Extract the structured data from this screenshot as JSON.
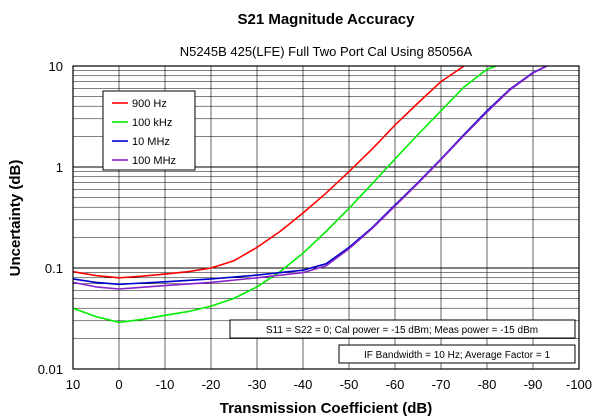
{
  "chart_data": {
    "type": "line",
    "title": "S21 Magnitude Accuracy",
    "subtitle": "N5245B 425(LFE) Full Two Port Cal Using 85056A",
    "xlabel": "Transmission Coefficient (dB)",
    "ylabel": "Uncertainty (dB)",
    "xlim": [
      10,
      -100
    ],
    "ylim": [
      0.01,
      10
    ],
    "yscale": "log",
    "x_ticks": [
      10,
      0,
      -10,
      -20,
      -30,
      -40,
      -50,
      -60,
      -70,
      -80,
      -90,
      -100
    ],
    "x_tick_labels": [
      "10",
      "0",
      "-10",
      "-20",
      "-30",
      "-40",
      "-50",
      "-60",
      "-70",
      "-80",
      "-90",
      "-100"
    ],
    "y_ticks": [
      0.01,
      0.1,
      1,
      10
    ],
    "y_tick_labels": [
      "0.01",
      "0.1",
      "1",
      "10"
    ],
    "grid": true,
    "legend_position": "top-left",
    "series": [
      {
        "name": "900 Hz",
        "color": "#ff0000",
        "x": [
          10,
          5,
          0,
          -5,
          -10,
          -15,
          -20,
          -25,
          -30,
          -35,
          -40,
          -45,
          -50,
          -55,
          -60,
          -65,
          -70,
          -75
        ],
        "y": [
          0.092,
          0.084,
          0.08,
          0.083,
          0.087,
          0.092,
          0.1,
          0.118,
          0.16,
          0.23,
          0.35,
          0.55,
          0.9,
          1.5,
          2.6,
          4.3,
          7.0,
          10.0
        ]
      },
      {
        "name": "100 kHz",
        "color": "#00ee00",
        "x": [
          10,
          5,
          0,
          -5,
          -10,
          -15,
          -20,
          -25,
          -30,
          -35,
          -40,
          -45,
          -50,
          -55,
          -60,
          -65,
          -70,
          -75,
          -80,
          -82
        ],
        "y": [
          0.04,
          0.033,
          0.029,
          0.031,
          0.034,
          0.037,
          0.042,
          0.05,
          0.065,
          0.092,
          0.14,
          0.23,
          0.39,
          0.68,
          1.2,
          2.1,
          3.6,
          6.2,
          9.3,
          10.0
        ]
      },
      {
        "name": "10 MHz",
        "color": "#0000cc",
        "x": [
          10,
          5,
          0,
          -10,
          -20,
          -30,
          -40,
          -45,
          -50,
          -55,
          -60,
          -65,
          -70,
          -75,
          -80,
          -85,
          -90,
          -93
        ],
        "y": [
          0.078,
          0.072,
          0.069,
          0.073,
          0.078,
          0.085,
          0.095,
          0.11,
          0.16,
          0.25,
          0.42,
          0.7,
          1.2,
          2.1,
          3.6,
          5.9,
          8.6,
          10.0
        ]
      },
      {
        "name": "100 MHz",
        "color": "#8822cc",
        "x": [
          10,
          5,
          0,
          -10,
          -20,
          -30,
          -40,
          -45,
          -50,
          -55,
          -60,
          -65,
          -70,
          -75,
          -80,
          -85,
          -90,
          -93
        ],
        "y": [
          0.072,
          0.065,
          0.062,
          0.067,
          0.072,
          0.08,
          0.09,
          0.105,
          0.155,
          0.245,
          0.41,
          0.69,
          1.18,
          2.05,
          3.5,
          5.8,
          8.5,
          10.0
        ]
      }
    ],
    "annotations": [
      "S11 = S22 = 0; Cal power = -15 dBm; Meas power = -15 dBm",
      "IF Bandwidth = 10 Hz; Average Factor = 1"
    ]
  }
}
